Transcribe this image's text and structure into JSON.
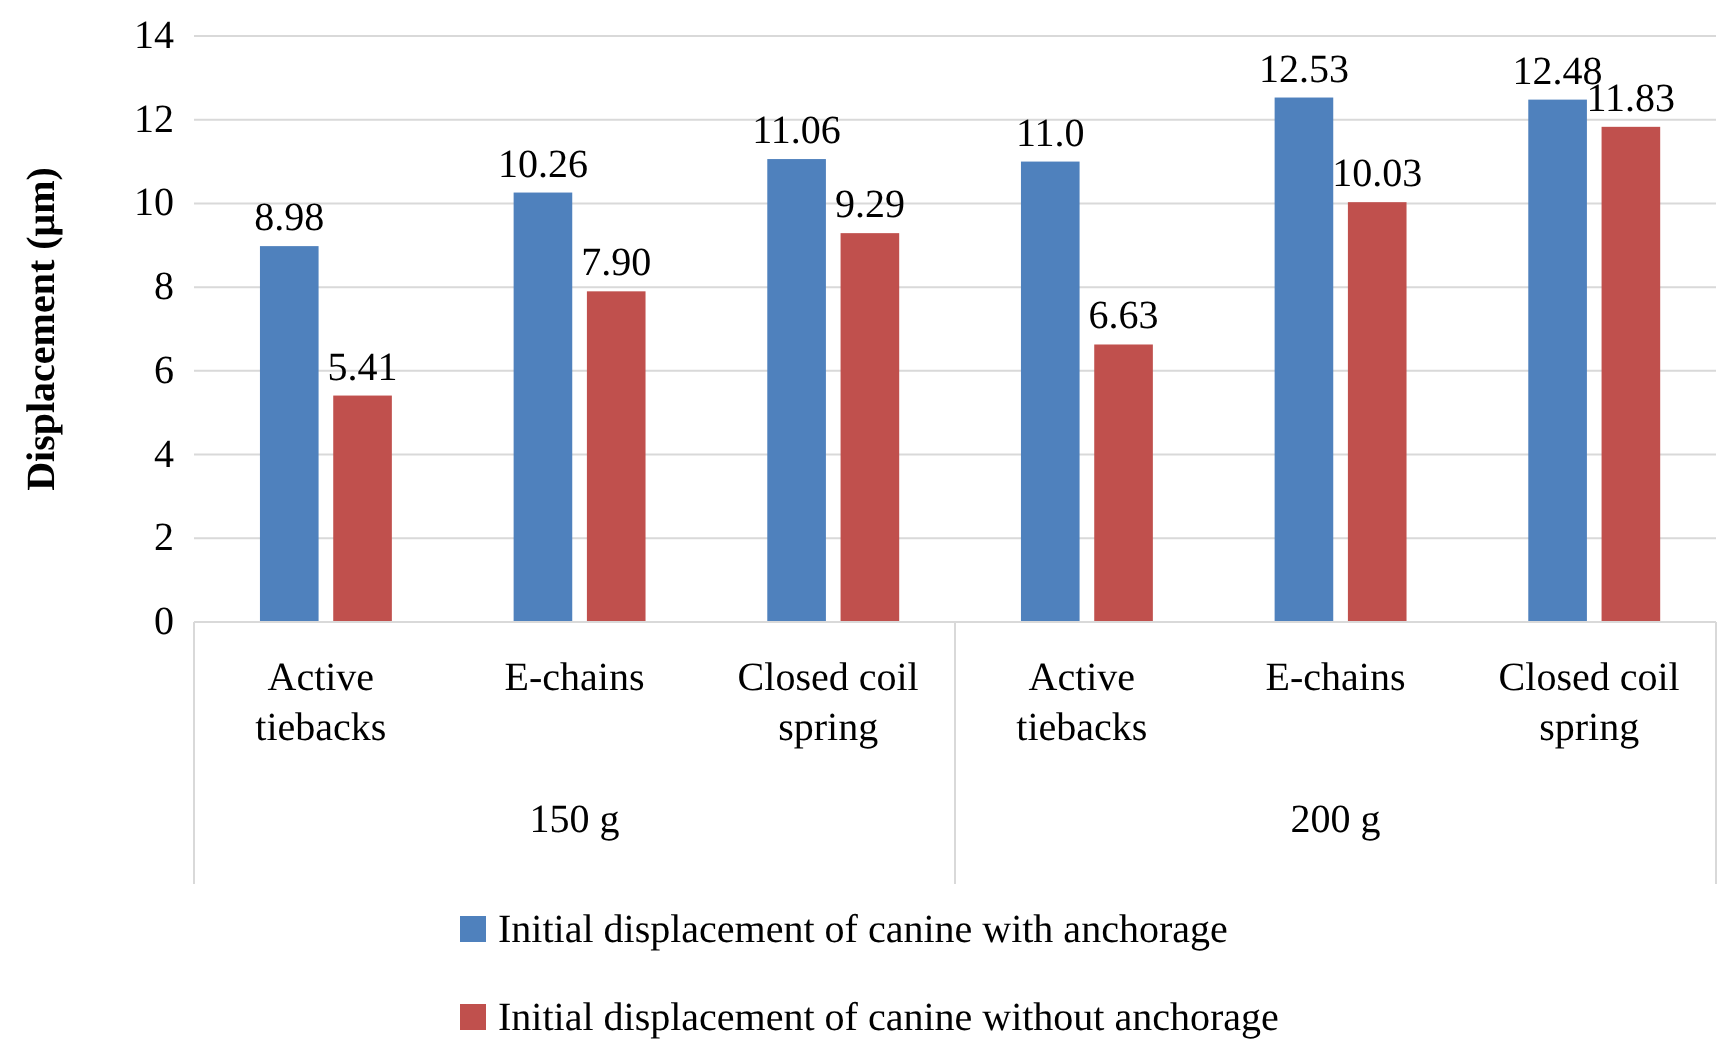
{
  "chart_data": {
    "type": "bar",
    "ylabel": "Displacement (μm)",
    "categories": [
      "Active tiebacks",
      "E-chains",
      "Closed coil spring",
      "Active tiebacks",
      "E-chains",
      "Closed coil spring"
    ],
    "series": [
      {
        "name": "Initial displacement of canine with anchorage",
        "color": "#4f81bd",
        "values": [
          8.98,
          10.26,
          11.06,
          11.0,
          12.53,
          12.48
        ],
        "value_labels": [
          "8.98",
          "10.26",
          "11.06",
          "11.0",
          "12.53",
          "12.48"
        ]
      },
      {
        "name": "Initial displacement of canine without anchorage",
        "color": "#c0504d",
        "values": [
          5.41,
          7.9,
          9.29,
          6.63,
          10.03,
          11.83
        ],
        "value_labels": [
          "5.41",
          "7.90",
          "9.29",
          "6.63",
          "10.03",
          "11.83"
        ]
      }
    ],
    "annotations": [
      "150 g",
      "200 g"
    ],
    "ylim": [
      0,
      14
    ],
    "yticks": [
      0,
      2,
      4,
      6,
      8,
      10,
      12,
      14
    ],
    "grid": "y",
    "legend": "bottom"
  }
}
